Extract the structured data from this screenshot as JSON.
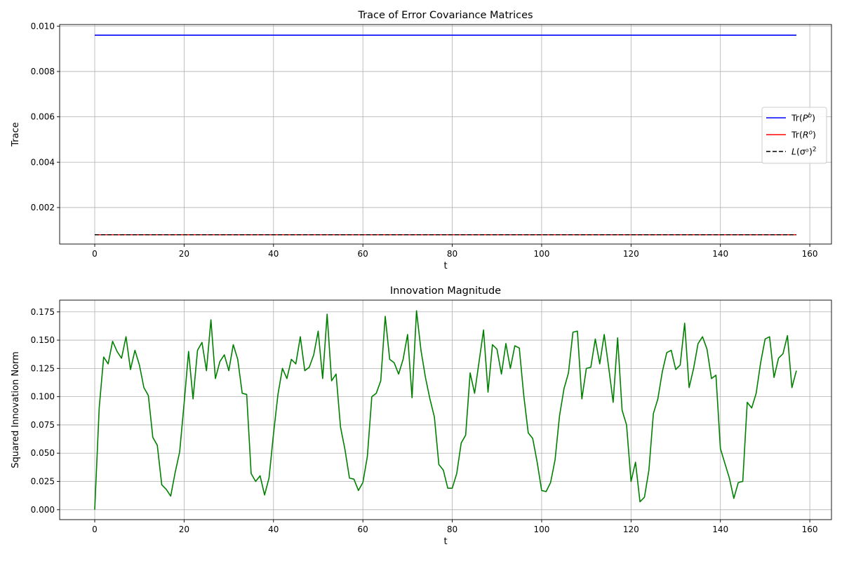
{
  "chart_data": [
    {
      "type": "line",
      "title": "Trace of Error Covariance Matrices",
      "xlabel": "t",
      "ylabel": "Trace",
      "xlim": [
        -7.85,
        164.85
      ],
      "ylim": [
        0.00039,
        0.01007
      ],
      "xticks": [
        0,
        20,
        40,
        60,
        80,
        100,
        120,
        140,
        160
      ],
      "yticks": [
        0.002,
        0.004,
        0.006,
        0.008,
        0.01
      ],
      "ytick_labels": [
        "0.002",
        "0.004",
        "0.006",
        "0.008",
        "0.010"
      ],
      "grid": true,
      "legend_position": "center-right",
      "x_range": [
        0,
        157
      ],
      "series": [
        {
          "name": "Tr(P^b)",
          "name_main": "Tr(",
          "name_var": "P",
          "name_sup": "b",
          "name_suffix": ")",
          "color": "#0000ff",
          "style": "solid",
          "value": 0.0096
        },
        {
          "name": "Tr(R^o)",
          "name_main": "Tr(",
          "name_var": "R",
          "name_sup": "o",
          "name_suffix": ")",
          "color": "#ff0000",
          "style": "solid",
          "value": 0.0008
        },
        {
          "name": "L(σ^o)^2",
          "name_main": "",
          "name_var": "L",
          "name_sup": "2",
          "name_suffix": "(σᵒ)",
          "color": "#000000",
          "style": "dashed",
          "value": 0.0008
        }
      ]
    },
    {
      "type": "line",
      "title": "Innovation Magnitude",
      "xlabel": "t",
      "ylabel": "Squared Innovation Norm",
      "xlim": [
        -7.85,
        164.85
      ],
      "ylim": [
        -0.0088,
        0.1854
      ],
      "xticks": [
        0,
        20,
        40,
        60,
        80,
        100,
        120,
        140,
        160
      ],
      "yticks": [
        0.0,
        0.025,
        0.05,
        0.075,
        0.1,
        0.125,
        0.15,
        0.175
      ],
      "ytick_labels": [
        "0.000",
        "0.025",
        "0.050",
        "0.075",
        "0.100",
        "0.125",
        "0.150",
        "0.175"
      ],
      "grid": true,
      "series": [
        {
          "color": "#008000",
          "x_start": 0,
          "values": [
            0.0,
            0.09,
            0.135,
            0.129,
            0.149,
            0.14,
            0.134,
            0.153,
            0.124,
            0.141,
            0.128,
            0.108,
            0.101,
            0.064,
            0.057,
            0.022,
            0.018,
            0.012,
            0.033,
            0.051,
            0.094,
            0.14,
            0.098,
            0.141,
            0.148,
            0.123,
            0.168,
            0.116,
            0.131,
            0.137,
            0.123,
            0.146,
            0.133,
            0.103,
            0.102,
            0.032,
            0.025,
            0.03,
            0.013,
            0.028,
            0.067,
            0.102,
            0.125,
            0.116,
            0.133,
            0.129,
            0.153,
            0.123,
            0.126,
            0.137,
            0.158,
            0.116,
            0.173,
            0.114,
            0.12,
            0.073,
            0.053,
            0.028,
            0.027,
            0.017,
            0.024,
            0.047,
            0.1,
            0.103,
            0.114,
            0.171,
            0.133,
            0.13,
            0.12,
            0.133,
            0.155,
            0.099,
            0.176,
            0.141,
            0.117,
            0.098,
            0.082,
            0.04,
            0.035,
            0.019,
            0.019,
            0.032,
            0.059,
            0.066,
            0.121,
            0.103,
            0.131,
            0.159,
            0.104,
            0.146,
            0.142,
            0.12,
            0.147,
            0.125,
            0.145,
            0.143,
            0.101,
            0.068,
            0.063,
            0.042,
            0.017,
            0.016,
            0.024,
            0.044,
            0.083,
            0.107,
            0.121,
            0.157,
            0.158,
            0.098,
            0.125,
            0.126,
            0.151,
            0.129,
            0.155,
            0.126,
            0.095,
            0.152,
            0.088,
            0.075,
            0.025,
            0.042,
            0.007,
            0.011,
            0.035,
            0.085,
            0.098,
            0.122,
            0.139,
            0.141,
            0.124,
            0.128,
            0.165,
            0.108,
            0.125,
            0.147,
            0.153,
            0.142,
            0.116,
            0.119,
            0.054,
            0.041,
            0.028,
            0.01,
            0.024,
            0.025,
            0.095,
            0.09,
            0.103,
            0.13,
            0.151,
            0.153,
            0.117,
            0.134,
            0.138,
            0.154,
            0.108,
            0.123
          ]
        }
      ]
    }
  ]
}
